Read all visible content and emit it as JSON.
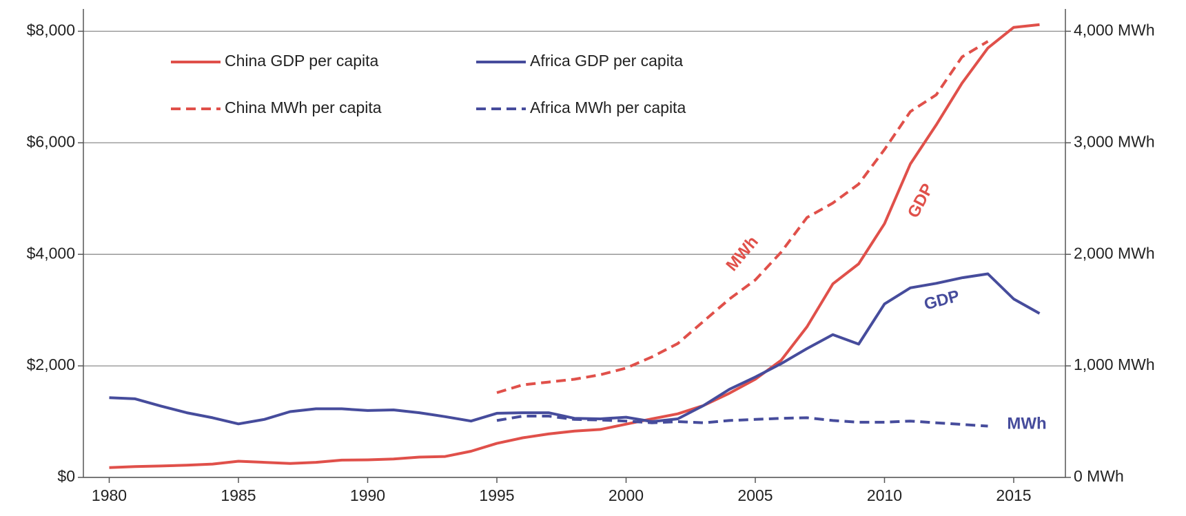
{
  "chart_data": {
    "type": "line",
    "x": [
      1980,
      1981,
      1982,
      1983,
      1984,
      1985,
      1986,
      1987,
      1988,
      1989,
      1990,
      1991,
      1992,
      1993,
      1994,
      1995,
      1996,
      1997,
      1998,
      1999,
      2000,
      2001,
      2002,
      2003,
      2004,
      2005,
      2006,
      2007,
      2008,
      2009,
      2010,
      2011,
      2012,
      2013,
      2014,
      2015,
      2016
    ],
    "series": [
      {
        "name": "China GDP per capita",
        "color": "#e0504a",
        "style": "solid",
        "axis": "y",
        "values": [
          175,
          195,
          205,
          220,
          240,
          290,
          270,
          250,
          270,
          310,
          315,
          330,
          365,
          375,
          470,
          610,
          710,
          780,
          830,
          860,
          955,
          1050,
          1140,
          1290,
          1510,
          1760,
          2100,
          2700,
          3470,
          3830,
          4550,
          5620,
          6320,
          7070,
          7700,
          8070,
          8120
        ]
      },
      {
        "name": "Africa GDP per capita",
        "color": "#464c9c",
        "style": "solid",
        "axis": "y",
        "values": [
          1430,
          1410,
          1280,
          1160,
          1070,
          960,
          1040,
          1180,
          1230,
          1230,
          1200,
          1210,
          1160,
          1090,
          1010,
          1150,
          1160,
          1160,
          1060,
          1050,
          1080,
          1000,
          1050,
          1290,
          1580,
          1800,
          2040,
          2310,
          2560,
          2390,
          3110,
          3400,
          3480,
          3580,
          3650,
          3200,
          2940
        ]
      },
      {
        "name": "China MWh per capita",
        "color": "#e0504a",
        "style": "dashed",
        "axis": "y2",
        "values": [
          null,
          null,
          null,
          null,
          null,
          null,
          null,
          null,
          null,
          null,
          null,
          null,
          null,
          null,
          null,
          760,
          830,
          855,
          880,
          920,
          980,
          1080,
          1200,
          1400,
          1600,
          1770,
          2020,
          2330,
          2460,
          2630,
          2940,
          3280,
          3430,
          3770,
          3910,
          null,
          null
        ]
      },
      {
        "name": "Africa MWh per capita",
        "color": "#464c9c",
        "style": "dashed",
        "axis": "y2",
        "values": [
          null,
          null,
          null,
          null,
          null,
          null,
          null,
          null,
          null,
          null,
          null,
          null,
          null,
          null,
          null,
          510,
          550,
          550,
          520,
          515,
          505,
          490,
          500,
          490,
          510,
          520,
          530,
          535,
          510,
          495,
          495,
          505,
          490,
          475,
          460,
          null,
          null
        ]
      }
    ],
    "xlim": [
      1979,
      2017
    ],
    "xticks": [
      1980,
      1985,
      1990,
      1995,
      2000,
      2005,
      2010,
      2015
    ],
    "ylim": [
      0,
      8400
    ],
    "yticks": [
      {
        "value": 0,
        "label": "$0"
      },
      {
        "value": 2000,
        "label": "$2,000"
      },
      {
        "value": 4000,
        "label": "$4,000"
      },
      {
        "value": 6000,
        "label": "$6,000"
      },
      {
        "value": 8000,
        "label": "$8,000"
      }
    ],
    "y2lim": [
      0,
      4200
    ],
    "y2ticks": [
      {
        "value": 0,
        "label": "0 MWh"
      },
      {
        "value": 1000,
        "label": "1,000 MWh"
      },
      {
        "value": 2000,
        "label": "2,000 MWh"
      },
      {
        "value": 3000,
        "label": "3,000 MWh"
      },
      {
        "value": 4000,
        "label": "4,000 MWh"
      }
    ],
    "grid": true,
    "legend": "upper left",
    "annotations": [
      {
        "text": "MWh",
        "color": "#e0504a"
      },
      {
        "text": "GDP",
        "color": "#e0504a"
      },
      {
        "text": "GDP",
        "color": "#464c9c"
      },
      {
        "text": "MWh",
        "color": "#464c9c"
      }
    ]
  }
}
